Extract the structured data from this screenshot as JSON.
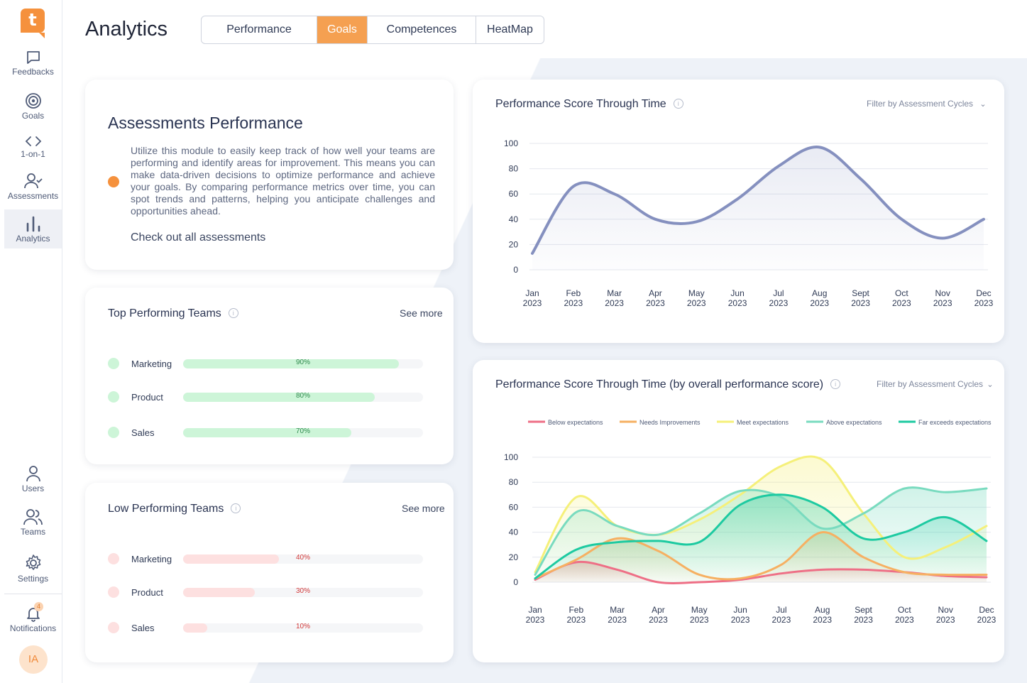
{
  "app": {
    "logo": "t",
    "title": "Analytics",
    "avatar_initials": "IA",
    "notifications_count": "4"
  },
  "sidebar": {
    "top_items": [
      {
        "label": "Feedbacks",
        "icon": "message-icon"
      },
      {
        "label": "Goals",
        "icon": "target-icon"
      },
      {
        "label": "1-on-1",
        "icon": "code-icon"
      },
      {
        "label": "Assessments",
        "icon": "user-check-icon"
      },
      {
        "label": "Analytics",
        "icon": "bar-chart-icon",
        "active": true
      }
    ],
    "bottom_items": [
      {
        "label": "Users",
        "icon": "user-icon"
      },
      {
        "label": "Teams",
        "icon": "users-icon"
      },
      {
        "label": "Settings",
        "icon": "gear-icon"
      },
      {
        "label": "Notifications",
        "icon": "bell-icon"
      }
    ]
  },
  "tabs": [
    {
      "label": "Performance"
    },
    {
      "label": "Goals",
      "active": true
    },
    {
      "label": "Competences"
    },
    {
      "label": "HeatMap"
    }
  ],
  "assessments": {
    "title": "Assessments Performance",
    "description": "Utilize this module to easily keep track of how well your teams are performing and identify areas for improvement. This means you can make data-driven decisions to optimize performance and achieve your goals. By comparing performance metrics over time, you can spot trends and patterns, helping you anticipate challenges and opportunities ahead.",
    "link": "Check out all assessments"
  },
  "top_teams": {
    "title": "Top Performing Teams",
    "see_more": "See more",
    "rows": [
      {
        "name": "Marketing",
        "value": 0.9,
        "label": "90%"
      },
      {
        "name": "Product",
        "value": 0.8,
        "label": "80%"
      },
      {
        "name": "Sales",
        "value": 0.7,
        "label": "70%"
      }
    ]
  },
  "low_teams": {
    "title": "Low Performing Teams",
    "see_more": "See more",
    "rows": [
      {
        "name": "Marketing",
        "value": 0.4,
        "label": "40%"
      },
      {
        "name": "Product",
        "value": 0.3,
        "label": "30%"
      },
      {
        "name": "Sales",
        "value": 0.1,
        "label": "10%"
      }
    ]
  },
  "colors": {
    "accent": "#f5913d",
    "line1": "#8590bf",
    "series": [
      "#ee6f86",
      "#f6b062",
      "#f5f07a",
      "#79dbbf",
      "#1dcaa1"
    ]
  },
  "chart_data": [
    {
      "type": "area",
      "title": "Performance Score Through Time",
      "filter": "Filter by Assessment Cycles",
      "categories": [
        "Jan 2023",
        "Feb 2023",
        "Mar 2023",
        "Apr 2023",
        "May 2023",
        "Jun 2023",
        "Jul 2023",
        "Aug 2023",
        "Sept 2023",
        "Oct 2023",
        "Nov 2023",
        "Dec 2023"
      ],
      "yticks": [
        100,
        80,
        60,
        40,
        20,
        0
      ],
      "ylim": [
        0,
        100
      ],
      "grid": true,
      "series": [
        {
          "values": [
            13,
            66,
            60,
            40,
            38,
            56,
            82,
            97,
            72,
            40,
            25,
            40
          ]
        }
      ]
    },
    {
      "type": "area",
      "title": "Performance Score Through Time (by overall performance score)",
      "filter": "Filter by Assessment Cycles",
      "categories": [
        "Jan 2023",
        "Feb 2023",
        "Mar 2023",
        "Apr 2023",
        "May 2023",
        "Jun 2023",
        "Jul 2023",
        "Aug 2023",
        "Sept 2023",
        "Oct 2023",
        "Nov 2023",
        "Dec 2023"
      ],
      "yticks": [
        100,
        80,
        60,
        40,
        20,
        0
      ],
      "ylim": [
        0,
        100
      ],
      "grid": true,
      "legend": "top",
      "series": [
        {
          "name": "Below expectations",
          "values": [
            2,
            16,
            10,
            0,
            0,
            2,
            7,
            10,
            10,
            8,
            5,
            4
          ]
        },
        {
          "name": "Needs Improvements",
          "values": [
            3,
            18,
            35,
            25,
            6,
            3,
            14,
            40,
            20,
            8,
            6,
            6
          ]
        },
        {
          "name": "Meet expectations",
          "values": [
            8,
            68,
            45,
            38,
            50,
            70,
            93,
            98,
            55,
            20,
            28,
            45
          ]
        },
        {
          "name": "Above expectations",
          "values": [
            6,
            56,
            45,
            38,
            55,
            73,
            68,
            43,
            55,
            75,
            72,
            75
          ]
        },
        {
          "name": "Far exceeds expectations",
          "values": [
            3,
            26,
            32,
            33,
            32,
            62,
            70,
            60,
            35,
            40,
            52,
            33
          ]
        }
      ]
    }
  ]
}
